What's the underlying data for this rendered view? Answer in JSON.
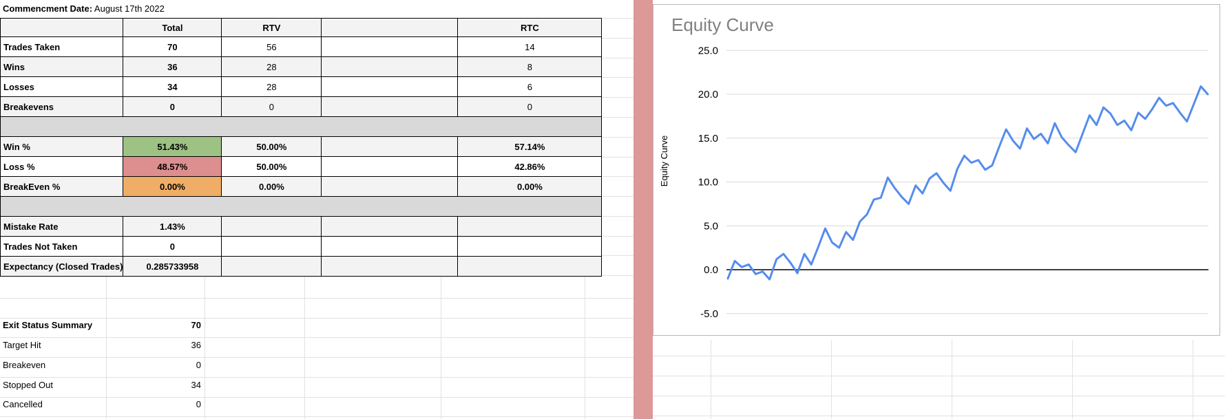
{
  "date_header": {
    "label": "Commencment Date:",
    "value": " August 17th 2022"
  },
  "table": {
    "header": {
      "total": "Total",
      "rtv": "RTV",
      "rtc": "RTC"
    },
    "rows": [
      {
        "label": "Trades Taken",
        "total": "70",
        "rtv": "56",
        "rtc": "14"
      },
      {
        "label": "Wins",
        "total": "36",
        "rtv": "28",
        "rtc": "8"
      },
      {
        "label": "Losses",
        "total": "34",
        "rtv": "28",
        "rtc": "6"
      },
      {
        "label": "Breakevens",
        "total": "0",
        "rtv": "0",
        "rtc": "0"
      },
      {
        "label": "Win %",
        "total": "51.43%",
        "rtv": "50.00%",
        "rtc": "57.14%"
      },
      {
        "label": "Loss %",
        "total": "48.57%",
        "rtv": "50.00%",
        "rtc": "42.86%"
      },
      {
        "label": "BreakEven %",
        "total": "0.00%",
        "rtv": "0.00%",
        "rtc": "0.00%"
      },
      {
        "label": "Mistake Rate",
        "total": "1.43%",
        "rtv": "",
        "rtc": ""
      },
      {
        "label": "Trades Not Taken",
        "total": "0",
        "rtv": "",
        "rtc": ""
      },
      {
        "label": "Expectancy (Closed Trades)",
        "total": "0.285733958",
        "rtv": "",
        "rtc": ""
      }
    ],
    "note_markers": [
      "Trades Taken",
      "Expectancy (Closed Trades)"
    ],
    "highlight_colors": {
      "win": "#9dc284",
      "loss": "#dd8e8e",
      "breakeven": "#f0ad66"
    },
    "divider_color": "#d9d9d9",
    "banding_color": "#f3f3f3"
  },
  "exit_summary": {
    "rows": [
      {
        "label": "Exit Status Summary",
        "value": "70"
      },
      {
        "label": "Target Hit",
        "value": "36"
      },
      {
        "label": "Breakeven",
        "value": "0"
      },
      {
        "label": "Stopped Out",
        "value": "34"
      },
      {
        "label": "Cancelled",
        "value": "0"
      }
    ]
  },
  "pink_column_color": "#dd9898",
  "chart_data": {
    "type": "line",
    "title": "Equity Curve",
    "y_axis_label": "Equity Curve",
    "x_label": "",
    "points": 70,
    "values": [
      -1.0,
      1.0,
      0.3,
      0.6,
      -0.5,
      -0.2,
      -1.1,
      1.2,
      1.8,
      0.8,
      -0.4,
      1.8,
      0.6,
      2.6,
      4.7,
      3.1,
      2.5,
      4.3,
      3.4,
      5.5,
      6.3,
      8.0,
      8.2,
      10.5,
      9.3,
      8.3,
      7.5,
      9.6,
      8.7,
      10.4,
      11.0,
      9.9,
      9.0,
      11.5,
      13.0,
      12.2,
      12.5,
      11.4,
      11.9,
      14.0,
      16.0,
      14.7,
      13.8,
      16.1,
      14.9,
      15.5,
      14.4,
      16.7,
      15.1,
      14.2,
      13.4,
      15.5,
      17.6,
      16.5,
      18.5,
      17.8,
      16.5,
      17.0,
      15.9,
      17.9,
      17.2,
      18.3,
      19.6,
      18.7,
      19.0,
      17.9,
      16.9,
      18.9,
      20.9,
      20.0
    ],
    "yticks": [
      25,
      20,
      15,
      10,
      5,
      0,
      -5
    ],
    "ytick_labels": [
      "25.0",
      "20.0",
      "15.0",
      "10.0",
      "5.0",
      "0.0",
      "-5.0"
    ],
    "ylim": [
      -7.5,
      26
    ],
    "grid": true,
    "legend": false,
    "line_color": "#548ced",
    "gridline_color": "#d9d9d9",
    "zero_line_color": "#000000",
    "title_color": "#808080"
  }
}
